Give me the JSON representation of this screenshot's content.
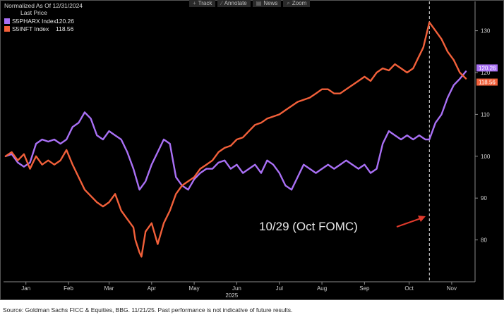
{
  "header": {
    "line1": "Normalized As Of 12/31/2024",
    "line2": "Last Price"
  },
  "toolbar": [
    {
      "label": "Track",
      "icon": "crosshair-icon",
      "glyph": "+"
    },
    {
      "label": "Annotate",
      "icon": "pencil-icon",
      "glyph": "∕"
    },
    {
      "label": "News",
      "icon": "newspaper-icon",
      "glyph": "▤"
    },
    {
      "label": "Zoom",
      "icon": "magnifier-icon",
      "glyph": "⌕"
    }
  ],
  "legend": [
    {
      "name": "S5PHARX Index",
      "value": "120.26",
      "color": "#a970f5"
    },
    {
      "name": "S5INFT Index",
      "value": "118.56",
      "color": "#f2603a"
    }
  ],
  "annotation": {
    "text": "10/29 (Oct FOMC)",
    "color": "#e03a2c"
  },
  "source": "Source: Goldman Sachs FICC & Equities, BBG. 11/21/25. Past performance is not indicative of future results.",
  "chart_data": {
    "type": "line",
    "x_unit": "trading day index from Jan 2, 2025",
    "x_range": [
      0,
      227
    ],
    "ylim": [
      70,
      137
    ],
    "yticks": [
      80,
      90,
      100,
      110,
      120,
      130
    ],
    "grid": false,
    "legend_position": "top-left",
    "xtick_labels": [
      "Jan",
      "Feb",
      "Mar",
      "Apr",
      "May",
      "Jun",
      "Jul",
      "Aug",
      "Sep",
      "Oct",
      "Nov"
    ],
    "xtick_positions": [
      10,
      31,
      51,
      72,
      93,
      114,
      135,
      156,
      177,
      199,
      220
    ],
    "year_label": "2025",
    "vline_x": 209,
    "series": [
      {
        "name": "S5PHARX Index",
        "color": "#a970f5",
        "last": 120.26,
        "points": [
          [
            0,
            100
          ],
          [
            3,
            100.5
          ],
          [
            6,
            98.5
          ],
          [
            9,
            97.5
          ],
          [
            12,
            98.5
          ],
          [
            15,
            103
          ],
          [
            18,
            104
          ],
          [
            21,
            103.5
          ],
          [
            24,
            104
          ],
          [
            27,
            103
          ],
          [
            30,
            104
          ],
          [
            33,
            107
          ],
          [
            36,
            108
          ],
          [
            39,
            110.5
          ],
          [
            42,
            109
          ],
          [
            45,
            105
          ],
          [
            48,
            104
          ],
          [
            51,
            106
          ],
          [
            54,
            105
          ],
          [
            57,
            104
          ],
          [
            60,
            101
          ],
          [
            63,
            97
          ],
          [
            66,
            92
          ],
          [
            69,
            94
          ],
          [
            72,
            98
          ],
          [
            75,
            101
          ],
          [
            78,
            104
          ],
          [
            81,
            103
          ],
          [
            84,
            95
          ],
          [
            87,
            93
          ],
          [
            90,
            92
          ],
          [
            93,
            94.5
          ],
          [
            96,
            96
          ],
          [
            99,
            97
          ],
          [
            102,
            97
          ],
          [
            105,
            98.5
          ],
          [
            108,
            99
          ],
          [
            111,
            97
          ],
          [
            114,
            98
          ],
          [
            117,
            96
          ],
          [
            120,
            97
          ],
          [
            123,
            98
          ],
          [
            126,
            96
          ],
          [
            129,
            99
          ],
          [
            132,
            98
          ],
          [
            135,
            96
          ],
          [
            138,
            93
          ],
          [
            141,
            92
          ],
          [
            144,
            95
          ],
          [
            147,
            98
          ],
          [
            150,
            97
          ],
          [
            153,
            96
          ],
          [
            156,
            97
          ],
          [
            159,
            98
          ],
          [
            162,
            97
          ],
          [
            165,
            98
          ],
          [
            168,
            99
          ],
          [
            171,
            98
          ],
          [
            174,
            97
          ],
          [
            177,
            98
          ],
          [
            180,
            96
          ],
          [
            183,
            97
          ],
          [
            186,
            103
          ],
          [
            189,
            106
          ],
          [
            192,
            105
          ],
          [
            195,
            104
          ],
          [
            198,
            105
          ],
          [
            201,
            104
          ],
          [
            204,
            105
          ],
          [
            207,
            104
          ],
          [
            209,
            104
          ],
          [
            212,
            108
          ],
          [
            215,
            110
          ],
          [
            218,
            114
          ],
          [
            221,
            117
          ],
          [
            224,
            118.5
          ],
          [
            227,
            120.26
          ]
        ]
      },
      {
        "name": "S5INFT Index",
        "color": "#f2603a",
        "last": 118.56,
        "points": [
          [
            0,
            100
          ],
          [
            3,
            101
          ],
          [
            6,
            99
          ],
          [
            9,
            100.5
          ],
          [
            12,
            97
          ],
          [
            15,
            100
          ],
          [
            18,
            98
          ],
          [
            21,
            99
          ],
          [
            24,
            98
          ],
          [
            27,
            99
          ],
          [
            30,
            101.5
          ],
          [
            33,
            98
          ],
          [
            36,
            95
          ],
          [
            39,
            92
          ],
          [
            42,
            90.5
          ],
          [
            45,
            89
          ],
          [
            48,
            88
          ],
          [
            51,
            89
          ],
          [
            54,
            91
          ],
          [
            57,
            87
          ],
          [
            60,
            85
          ],
          [
            63,
            83
          ],
          [
            64,
            80
          ],
          [
            66,
            77
          ],
          [
            67,
            76
          ],
          [
            69,
            82
          ],
          [
            72,
            84
          ],
          [
            75,
            79
          ],
          [
            78,
            84
          ],
          [
            81,
            87
          ],
          [
            84,
            91
          ],
          [
            87,
            93
          ],
          [
            90,
            94
          ],
          [
            93,
            95
          ],
          [
            96,
            97
          ],
          [
            99,
            98
          ],
          [
            102,
            99
          ],
          [
            105,
            101
          ],
          [
            108,
            102
          ],
          [
            111,
            102.5
          ],
          [
            114,
            104
          ],
          [
            117,
            104.5
          ],
          [
            120,
            106
          ],
          [
            123,
            107.5
          ],
          [
            126,
            108
          ],
          [
            129,
            109
          ],
          [
            132,
            109.5
          ],
          [
            135,
            110
          ],
          [
            138,
            111
          ],
          [
            141,
            112
          ],
          [
            144,
            113
          ],
          [
            147,
            113.5
          ],
          [
            150,
            114
          ],
          [
            153,
            115
          ],
          [
            156,
            116
          ],
          [
            159,
            116
          ],
          [
            162,
            115
          ],
          [
            165,
            115
          ],
          [
            168,
            116
          ],
          [
            171,
            117
          ],
          [
            174,
            118
          ],
          [
            177,
            119
          ],
          [
            180,
            118
          ],
          [
            183,
            120
          ],
          [
            186,
            121
          ],
          [
            189,
            120.5
          ],
          [
            192,
            122
          ],
          [
            195,
            121
          ],
          [
            198,
            120
          ],
          [
            201,
            121
          ],
          [
            204,
            124
          ],
          [
            206,
            126
          ],
          [
            209,
            132
          ],
          [
            212,
            130
          ],
          [
            215,
            128
          ],
          [
            218,
            125
          ],
          [
            221,
            123
          ],
          [
            224,
            120
          ],
          [
            227,
            118.56
          ]
        ]
      }
    ]
  }
}
